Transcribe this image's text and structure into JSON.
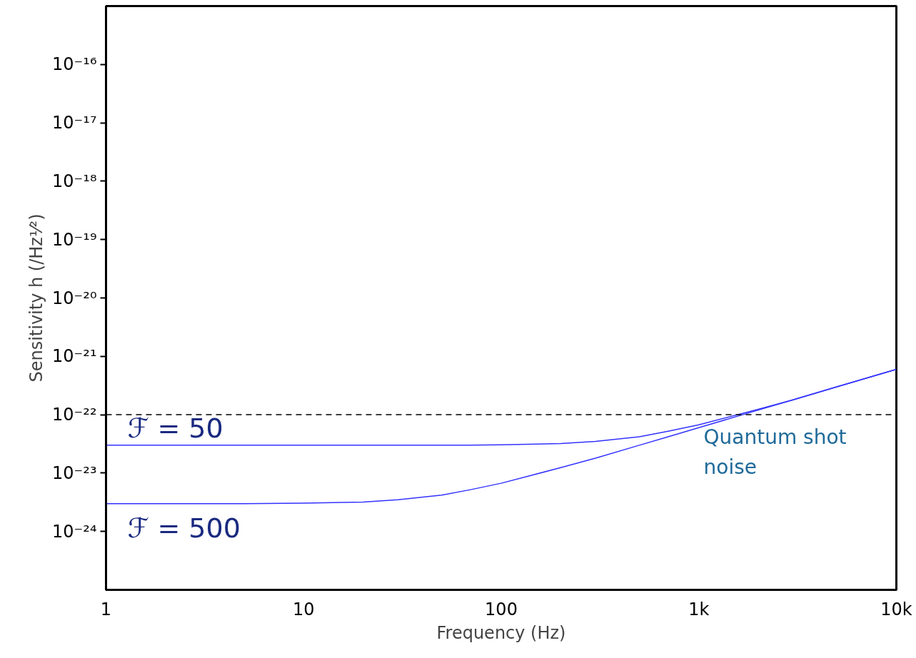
{
  "chart_data": {
    "type": "line",
    "xlabel": "Frequency (Hz)",
    "ylabel": "Sensitivity h (/Hz¹⁄²)",
    "log": "xy",
    "x": [
      1,
      2,
      5,
      10,
      20,
      30,
      50,
      70,
      100,
      200,
      300,
      500,
      700,
      1000,
      2000,
      3000,
      5000,
      10000
    ],
    "series": [
      {
        "name": "ℱ = 50",
        "color": "#3333ff",
        "values": [
          3e-23,
          3e-23,
          3e-23,
          3e-23,
          3e-23,
          3e-23,
          3e-23,
          3e-23,
          3.06e-23,
          3.2e-23,
          3.5e-23,
          4.2e-23,
          5.2e-23,
          6.7e-23,
          1.24e-22,
          1.8e-22,
          3e-22,
          6e-22
        ]
      },
      {
        "name": "ℱ = 500",
        "color": "#3333ff",
        "values": [
          3e-24,
          3e-24,
          3e-24,
          3.06e-24,
          3.2e-24,
          3.5e-24,
          4.2e-24,
          5.2e-24,
          6.7e-24,
          1.24e-23,
          1.8e-23,
          3e-23,
          4.2e-23,
          6e-23,
          1.2e-22,
          1.8e-22,
          3e-22,
          6e-22
        ]
      }
    ],
    "xlim": [
      1,
      10000
    ],
    "ylim": [
      1e-25,
      1e-15
    ],
    "xticks": [
      1,
      10,
      100,
      {
        "value": 1000,
        "label": "1k"
      },
      {
        "value": 10000,
        "label": "10k"
      }
    ],
    "yticks": [
      {
        "value": 1e-16,
        "label": "10⁻¹⁶"
      },
      {
        "value": 1e-17,
        "label": "10⁻¹⁷"
      },
      {
        "value": 1e-18,
        "label": "10⁻¹⁸"
      },
      {
        "value": 1e-19,
        "label": "10⁻¹⁹"
      },
      {
        "value": 1e-20,
        "label": "10⁻²⁰"
      },
      {
        "value": 1e-21,
        "label": "10⁻²¹"
      },
      {
        "value": 1e-22,
        "label": "10⁻²²"
      },
      {
        "value": 1e-23,
        "label": "10⁻²³"
      },
      {
        "value": 1e-24,
        "label": "10⁻²⁴"
      }
    ],
    "ref_lines": [
      {
        "axis": "y",
        "value": 1e-22,
        "label": null,
        "color": "#000000",
        "line_style": "dashed"
      }
    ],
    "annotations": [
      "Quantum shot noise"
    ],
    "grid": false,
    "marker": "none",
    "line_style": "solid"
  }
}
